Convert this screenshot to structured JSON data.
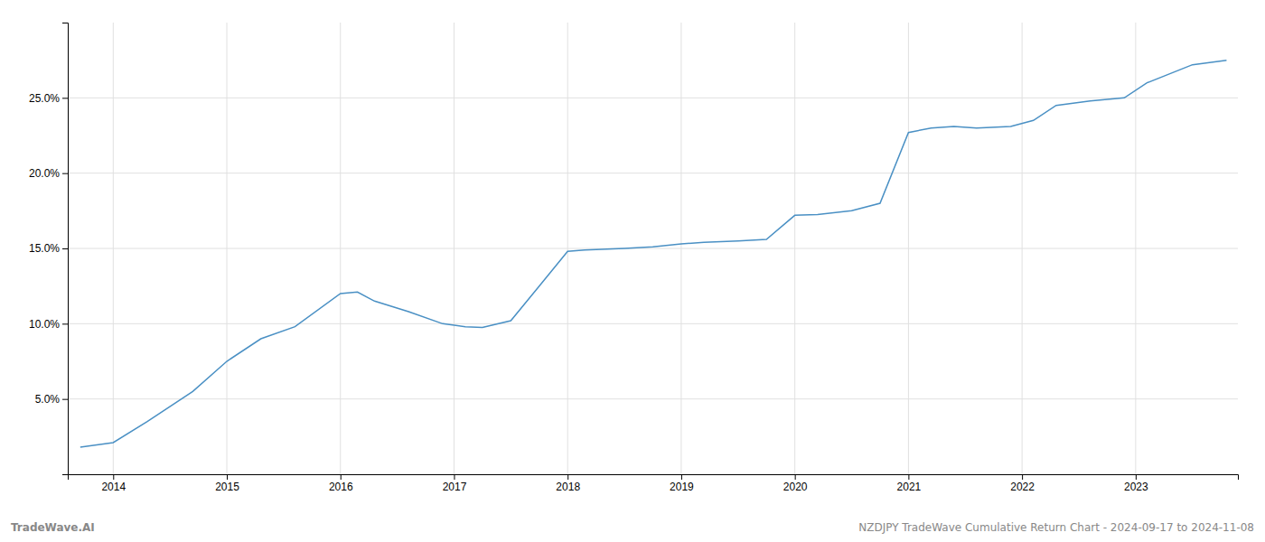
{
  "chart_data": {
    "type": "line",
    "x": [
      2013.71,
      2014.0,
      2014.3,
      2014.7,
      2015.0,
      2015.3,
      2015.6,
      2016.0,
      2016.15,
      2016.3,
      2016.6,
      2016.9,
      2017.1,
      2017.25,
      2017.5,
      2017.75,
      2018.0,
      2018.15,
      2018.5,
      2018.75,
      2019.0,
      2019.2,
      2019.5,
      2019.75,
      2020.0,
      2020.2,
      2020.5,
      2020.75,
      2021.0,
      2021.2,
      2021.4,
      2021.6,
      2021.9,
      2022.1,
      2022.3,
      2022.6,
      2022.9,
      2023.1,
      2023.5,
      2023.8
    ],
    "values": [
      1.8,
      2.1,
      3.5,
      5.5,
      7.5,
      9.0,
      9.8,
      12.0,
      12.1,
      11.5,
      10.8,
      10.0,
      9.8,
      9.75,
      10.2,
      12.5,
      14.8,
      14.9,
      15.0,
      15.1,
      15.3,
      15.4,
      15.5,
      15.6,
      17.2,
      17.25,
      17.5,
      18.0,
      22.7,
      23.0,
      23.1,
      23.0,
      23.1,
      23.5,
      24.5,
      24.8,
      25.0,
      26.0,
      27.2,
      27.5
    ],
    "color": "#4a90c4",
    "xlim": [
      2013.6,
      2023.9
    ],
    "xticks": [
      2014,
      2015,
      2016,
      2017,
      2018,
      2019,
      2020,
      2021,
      2022,
      2023
    ],
    "ylim": [
      0,
      30
    ],
    "yticks": [
      {
        "value": 5.0,
        "label": "5.0%"
      },
      {
        "value": 10.0,
        "label": "10.0%"
      },
      {
        "value": 15.0,
        "label": "15.0%"
      },
      {
        "value": 20.0,
        "label": "20.0%"
      },
      {
        "value": 25.0,
        "label": "25.0%"
      }
    ],
    "grid": true,
    "annotations": [
      "TradeWave.AI",
      "NZDJPY TradeWave Cumulative Return Chart - 2024-09-17 to 2024-11-08"
    ]
  }
}
